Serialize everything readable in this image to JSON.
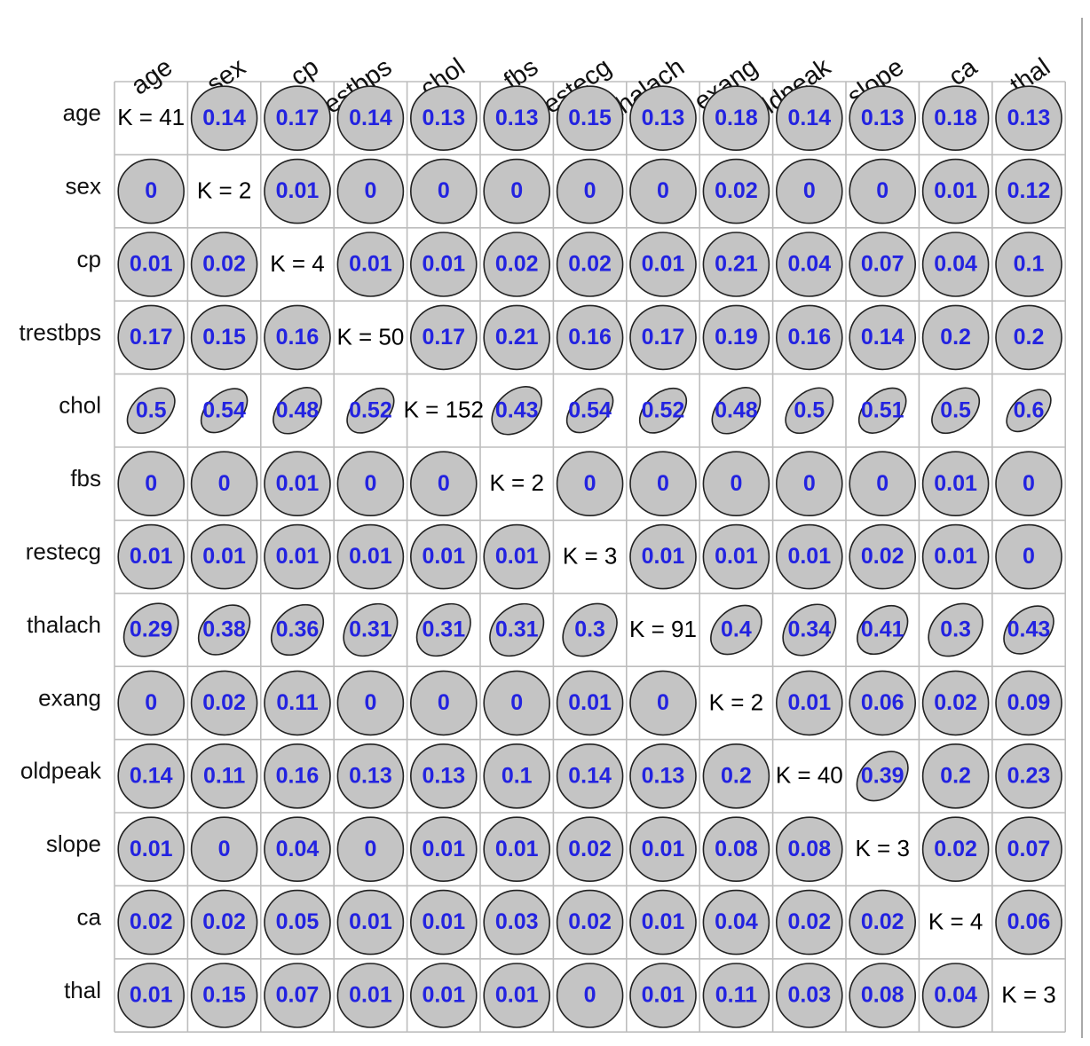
{
  "chart_data": {
    "type": "heatmap",
    "variables": [
      "age",
      "sex",
      "cp",
      "trestbps",
      "chol",
      "fbs",
      "restecg",
      "thalach",
      "exang",
      "oldpeak",
      "slope",
      "ca",
      "thal"
    ],
    "diagonal": [
      "K = 41",
      "K = 2",
      "K = 4",
      "K = 50",
      "K = 152",
      "K = 2",
      "K = 3",
      "K = 91",
      "K = 2",
      "K = 40",
      "K = 3",
      "K = 4",
      "K = 3"
    ],
    "values": [
      [
        null,
        0.14,
        0.17,
        0.14,
        0.13,
        0.13,
        0.15,
        0.13,
        0.18,
        0.14,
        0.13,
        0.18,
        0.13
      ],
      [
        0,
        null,
        0.01,
        0,
        0,
        0,
        0,
        0,
        0.02,
        0,
        0,
        0.01,
        0.12
      ],
      [
        0.01,
        0.02,
        null,
        0.01,
        0.01,
        0.02,
        0.02,
        0.01,
        0.21,
        0.04,
        0.07,
        0.04,
        0.1
      ],
      [
        0.17,
        0.15,
        0.16,
        null,
        0.17,
        0.21,
        0.16,
        0.17,
        0.19,
        0.16,
        0.14,
        0.2,
        0.2
      ],
      [
        0.5,
        0.54,
        0.48,
        0.52,
        null,
        0.43,
        0.54,
        0.52,
        0.48,
        0.5,
        0.51,
        0.5,
        0.6
      ],
      [
        0,
        0,
        0.01,
        0,
        0,
        null,
        0,
        0,
        0,
        0,
        0,
        0.01,
        0
      ],
      [
        0.01,
        0.01,
        0.01,
        0.01,
        0.01,
        0.01,
        null,
        0.01,
        0.01,
        0.01,
        0.02,
        0.01,
        0
      ],
      [
        0.29,
        0.38,
        0.36,
        0.31,
        0.31,
        0.31,
        0.3,
        null,
        0.4,
        0.34,
        0.41,
        0.3,
        0.43
      ],
      [
        0,
        0.02,
        0.11,
        0,
        0,
        0,
        0.01,
        0,
        null,
        0.01,
        0.06,
        0.02,
        0.09
      ],
      [
        0.14,
        0.11,
        0.16,
        0.13,
        0.13,
        0.1,
        0.14,
        0.13,
        0.2,
        null,
        0.39,
        0.2,
        0.23
      ],
      [
        0.01,
        0,
        0.04,
        0,
        0.01,
        0.01,
        0.02,
        0.01,
        0.08,
        0.08,
        null,
        0.02,
        0.07
      ],
      [
        0.02,
        0.02,
        0.05,
        0.01,
        0.01,
        0.03,
        0.02,
        0.01,
        0.04,
        0.02,
        0.02,
        null,
        0.06
      ],
      [
        0.01,
        0.15,
        0.07,
        0.01,
        0.01,
        0.01,
        0,
        0.01,
        0.11,
        0.03,
        0.08,
        0.04,
        null
      ]
    ],
    "title": "",
    "xlabel": "",
    "ylabel": "",
    "grid": true,
    "legend": "none",
    "colors": {
      "ellipse_fill": "#c4c4c4",
      "ellipse_stroke": "#222222",
      "value_text": "#2323e0",
      "diagonal_text": "#000000",
      "grid": "#bdbdbd"
    }
  }
}
